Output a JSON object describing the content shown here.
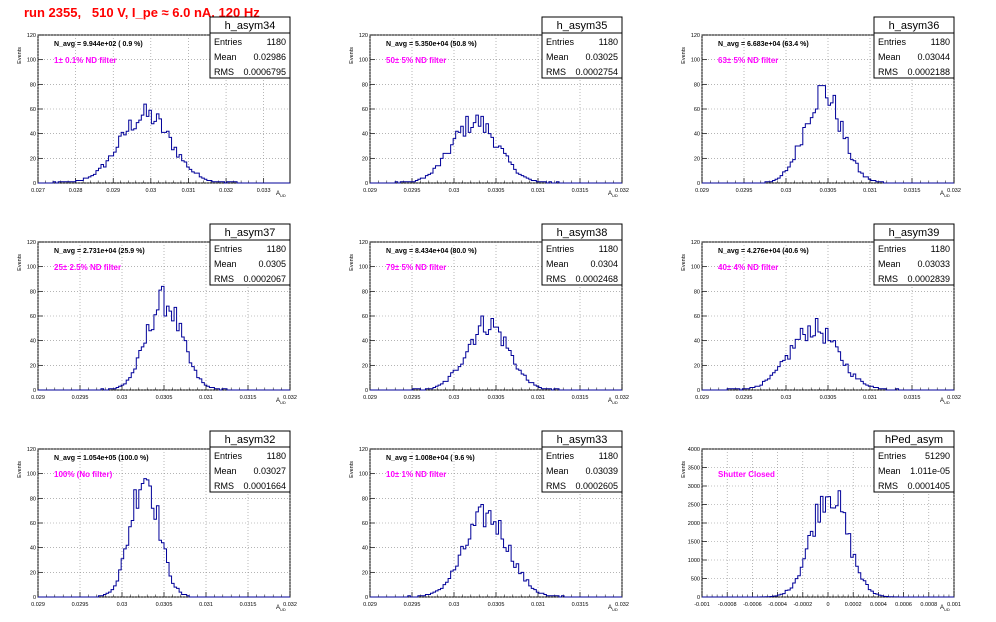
{
  "page": {
    "title": "run 2355,   510 V, I_pe ≈ 6.0 nA, 120 Hz"
  },
  "colors": {
    "histogram": "#000099",
    "annotation": "#ff00ff",
    "title": "#ff0000",
    "grid": "#888888"
  },
  "chart_data": [
    {
      "type": "bar",
      "name": "h_asym34",
      "navg": "N_avg = 9.944e+02 ( 0.9 %)",
      "label": "1± 0.1% ND filter",
      "stats": [
        [
          "Entries",
          "1180"
        ],
        [
          "Mean",
          "0.02986"
        ],
        [
          "RMS",
          "0.0006795"
        ]
      ],
      "xlim": [
        0.027,
        0.0337
      ],
      "ylim": [
        0,
        120
      ],
      "xticks": [
        0.027,
        0.028,
        0.029,
        0.03,
        0.031,
        0.032,
        0.033
      ],
      "xticklabels": [
        "0.027",
        "0.028",
        "0.029",
        "0.03",
        "0.031",
        "0.032",
        "0.033"
      ],
      "yticks": [
        0,
        20,
        40,
        60,
        80,
        100,
        120
      ],
      "xlabel": "A_UD",
      "ylabel": "Events",
      "mean": 0.02986,
      "rms": 0.0006795,
      "peak": 55
    },
    {
      "type": "bar",
      "name": "h_asym35",
      "navg": "N_avg = 5.350e+04 (50.8 %)",
      "label": "50± 5% ND filter",
      "stats": [
        [
          "Entries",
          "1180"
        ],
        [
          "Mean",
          "0.03025"
        ],
        [
          "RMS",
          "0.0002754"
        ]
      ],
      "xlim": [
        0.029,
        0.032
      ],
      "ylim": [
        0,
        120
      ],
      "xticks": [
        0.029,
        0.0295,
        0.03,
        0.0305,
        0.031,
        0.0315,
        0.032
      ],
      "xticklabels": [
        "0.029",
        "0.0295",
        "0.03",
        "0.0305",
        "0.031",
        "0.0315",
        "0.032"
      ],
      "yticks": [
        0,
        20,
        40,
        60,
        80,
        100,
        120
      ],
      "xlabel": "A_UD",
      "ylabel": "Events",
      "mean": 0.03025,
      "rms": 0.0002754,
      "peak": 50
    },
    {
      "type": "bar",
      "name": "h_asym36",
      "navg": "N_avg = 6.683e+04 (63.4 %)",
      "label": "63± 5% ND filter",
      "stats": [
        [
          "Entries",
          "1180"
        ],
        [
          "Mean",
          "0.03044"
        ],
        [
          "RMS",
          "0.0002188"
        ]
      ],
      "xlim": [
        0.029,
        0.032
      ],
      "ylim": [
        0,
        120
      ],
      "xticks": [
        0.029,
        0.0295,
        0.03,
        0.0305,
        0.031,
        0.0315,
        0.032
      ],
      "xticklabels": [
        "0.029",
        "0.0295",
        "0.03",
        "0.0305",
        "0.031",
        "0.0315",
        "0.032"
      ],
      "yticks": [
        0,
        20,
        40,
        60,
        80,
        100,
        120
      ],
      "xlabel": "A_UD",
      "ylabel": "Events",
      "mean": 0.03044,
      "rms": 0.0002188,
      "peak": 74
    },
    {
      "type": "bar",
      "name": "h_asym37",
      "navg": "N_avg = 2.731e+04 (25.9 %)",
      "label": "25± 2.5% ND filter",
      "stats": [
        [
          "Entries",
          "1180"
        ],
        [
          "Mean",
          "0.0305"
        ],
        [
          "RMS",
          "0.0002067"
        ]
      ],
      "xlim": [
        0.029,
        0.032
      ],
      "ylim": [
        0,
        120
      ],
      "xticks": [
        0.029,
        0.0295,
        0.03,
        0.0305,
        0.031,
        0.0315,
        0.032
      ],
      "xticklabels": [
        "0.029",
        "0.0295",
        "0.03",
        "0.0305",
        "0.031",
        "0.0315",
        "0.032"
      ],
      "yticks": [
        0,
        20,
        40,
        60,
        80,
        100,
        120
      ],
      "xlabel": "A_UD",
      "ylabel": "Events",
      "mean": 0.0305,
      "rms": 0.0002067,
      "peak": 72
    },
    {
      "type": "bar",
      "name": "h_asym38",
      "navg": "N_avg = 8.434e+04 (80.0 %)",
      "label": "79± 5% ND filter",
      "stats": [
        [
          "Entries",
          "1180"
        ],
        [
          "Mean",
          "0.0304"
        ],
        [
          "RMS",
          "0.0002468"
        ]
      ],
      "xlim": [
        0.029,
        0.032
      ],
      "ylim": [
        0,
        120
      ],
      "xticks": [
        0.029,
        0.0295,
        0.03,
        0.0305,
        0.031,
        0.0315,
        0.032
      ],
      "xticklabels": [
        "0.029",
        "0.0295",
        "0.03",
        "0.0305",
        "0.031",
        "0.0315",
        "0.032"
      ],
      "yticks": [
        0,
        20,
        40,
        60,
        80,
        100,
        120
      ],
      "xlabel": "A_UD",
      "ylabel": "Events",
      "mean": 0.0304,
      "rms": 0.0002468,
      "peak": 54
    },
    {
      "type": "bar",
      "name": "h_asym39",
      "navg": "N_avg = 4.276e+04 (40.6 %)",
      "label": "40± 4% ND filter",
      "stats": [
        [
          "Entries",
          "1180"
        ],
        [
          "Mean",
          "0.03033"
        ],
        [
          "RMS",
          "0.0002839"
        ]
      ],
      "xlim": [
        0.029,
        0.032
      ],
      "ylim": [
        0,
        120
      ],
      "xticks": [
        0.029,
        0.0295,
        0.03,
        0.0305,
        0.031,
        0.0315,
        0.032
      ],
      "xticklabels": [
        "0.029",
        "0.0295",
        "0.03",
        "0.0305",
        "0.031",
        "0.0315",
        "0.032"
      ],
      "yticks": [
        0,
        20,
        40,
        60,
        80,
        100,
        120
      ],
      "xlabel": "A_UD",
      "ylabel": "Events",
      "mean": 0.03033,
      "rms": 0.0002839,
      "peak": 50
    },
    {
      "type": "bar",
      "name": "h_asym32",
      "navg": "N_avg = 1.054e+05 (100.0 %)",
      "label": "100% (No filter)",
      "stats": [
        [
          "Entries",
          "1180"
        ],
        [
          "Mean",
          "0.03027"
        ],
        [
          "RMS",
          "0.0001664"
        ]
      ],
      "xlim": [
        0.029,
        0.032
      ],
      "ylim": [
        0,
        120
      ],
      "xticks": [
        0.029,
        0.0295,
        0.03,
        0.0305,
        0.031,
        0.0315,
        0.032
      ],
      "xticklabels": [
        "0.029",
        "0.0295",
        "0.03",
        "0.0305",
        "0.031",
        "0.0315",
        "0.032"
      ],
      "yticks": [
        0,
        20,
        40,
        60,
        80,
        100,
        120
      ],
      "xlabel": "A_UD",
      "ylabel": "Events",
      "mean": 0.03027,
      "rms": 0.0001664,
      "peak": 100
    },
    {
      "type": "bar",
      "name": "h_asym33",
      "navg": "N_avg = 1.008e+04 ( 9.6 %)",
      "label": "10± 1% ND filter",
      "stats": [
        [
          "Entries",
          "1180"
        ],
        [
          "Mean",
          "0.03039"
        ],
        [
          "RMS",
          "0.0002605"
        ]
      ],
      "xlim": [
        0.029,
        0.032
      ],
      "ylim": [
        0,
        120
      ],
      "xticks": [
        0.029,
        0.0295,
        0.03,
        0.0305,
        0.031,
        0.0315,
        0.032
      ],
      "xticklabels": [
        "0.029",
        "0.0295",
        "0.03",
        "0.0305",
        "0.031",
        "0.0315",
        "0.032"
      ],
      "yticks": [
        0,
        20,
        40,
        60,
        80,
        100,
        120
      ],
      "xlabel": "A_UD",
      "ylabel": "Events",
      "mean": 0.03039,
      "rms": 0.0002605,
      "peak": 66
    },
    {
      "type": "bar",
      "name": "hPed_asym",
      "navg": "",
      "label": "Shutter Closed",
      "stats": [
        [
          "Entries",
          "51290"
        ],
        [
          "Mean",
          "1.011e-05"
        ],
        [
          "RMS",
          "0.0001405"
        ]
      ],
      "xlim": [
        -0.001,
        0.001
      ],
      "ylim": [
        0,
        4000
      ],
      "xticks": [
        -0.001,
        -0.0008,
        -0.0006,
        -0.0004,
        -0.0002,
        0,
        0.0002,
        0.0004,
        0.0006,
        0.0008,
        0.001
      ],
      "xticklabels": [
        "-0.001",
        "-0.0008",
        "-0.0006",
        "-0.0004",
        "-0.0002",
        "0",
        "0.0002",
        "0.0004",
        "0.0006",
        "0.0008",
        "0.001"
      ],
      "yticks": [
        0,
        500,
        1000,
        1500,
        2000,
        2500,
        3000,
        3500,
        4000
      ],
      "xlabel": "A_UD",
      "ylabel": "Events",
      "mean": 1.011e-05,
      "rms": 0.0001405,
      "peak": 2880
    }
  ]
}
